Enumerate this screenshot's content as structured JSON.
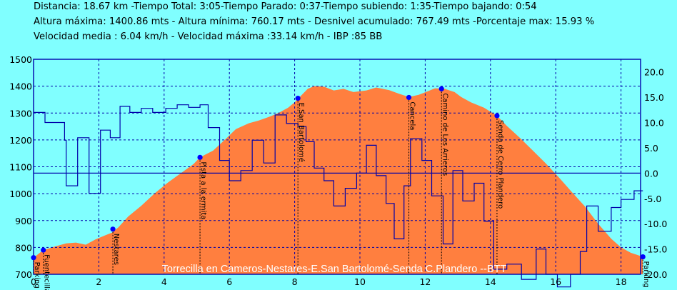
{
  "header": {
    "line1": "Distancia: 18.67 km -Tiempo Total: 3:05-Tiempo Parado: 0:37-Tiempo subiendo: 1:35-Tiempo bajando: 0:54",
    "line2": "Altura máxima: 1400.86 mts - Altura mínima: 760.17 mts - Desnivel acumulado: 767.49 mts -Porcentaje max: 15.93 %",
    "line3": "Velocidad media : 6.04 km/h - Velocidad máxima :33.14 km/h - IBP :85 BB"
  },
  "chart_data": {
    "type": "area",
    "title": "Torrecilla en Cameros-Nestares-E.San Bartolomé-Senda C.Plandero --BTT",
    "xlim": [
      0,
      18.67
    ],
    "ylim": [
      700,
      1500
    ],
    "y2lim": [
      -20,
      22.5
    ],
    "x_ticks": [
      "0",
      "2",
      "4",
      "6",
      "8",
      "10",
      "12",
      "14",
      "16",
      "18"
    ],
    "y_ticks": [
      "700",
      "800",
      "900",
      "1000",
      "1100",
      "1200",
      "1300",
      "1400",
      "1500"
    ],
    "y2_ticks": [
      "20.0",
      "15.0",
      "10.0",
      "5.0",
      "0.0",
      "-5.0",
      "-10.0",
      "-15.0",
      "-20.0"
    ],
    "colors": {
      "fill": "#ff7f3f",
      "slope_line": "#0000aa",
      "waypoint": "#0000ff",
      "grid": "#0000aa",
      "background": "#80ffff"
    },
    "altitude": [
      [
        0,
        762
      ],
      [
        0.3,
        790
      ],
      [
        0.7,
        805
      ],
      [
        1.0,
        815
      ],
      [
        1.3,
        818
      ],
      [
        1.6,
        810
      ],
      [
        1.9,
        830
      ],
      [
        2.2,
        845
      ],
      [
        2.4,
        855
      ],
      [
        2.6,
        875
      ],
      [
        2.9,
        915
      ],
      [
        3.3,
        955
      ],
      [
        3.7,
        1000
      ],
      [
        4.1,
        1040
      ],
      [
        4.5,
        1075
      ],
      [
        4.9,
        1110
      ],
      [
        5.1,
        1135
      ],
      [
        5.5,
        1160
      ],
      [
        5.9,
        1205
      ],
      [
        6.2,
        1240
      ],
      [
        6.6,
        1262
      ],
      [
        6.9,
        1272
      ],
      [
        7.2,
        1285
      ],
      [
        7.5,
        1300
      ],
      [
        7.8,
        1320
      ],
      [
        8.0,
        1340
      ],
      [
        8.2,
        1365
      ],
      [
        8.4,
        1390
      ],
      [
        8.6,
        1400
      ],
      [
        8.9,
        1398
      ],
      [
        9.2,
        1384
      ],
      [
        9.5,
        1390
      ],
      [
        9.8,
        1378
      ],
      [
        10.2,
        1384
      ],
      [
        10.5,
        1395
      ],
      [
        10.9,
        1385
      ],
      [
        11.2,
        1372
      ],
      [
        11.5,
        1360
      ],
      [
        11.8,
        1368
      ],
      [
        12.1,
        1382
      ],
      [
        12.3,
        1392
      ],
      [
        12.6,
        1390
      ],
      [
        12.9,
        1378
      ],
      [
        13.1,
        1360
      ],
      [
        13.4,
        1340
      ],
      [
        13.8,
        1320
      ],
      [
        14.2,
        1290
      ],
      [
        14.5,
        1252
      ],
      [
        14.9,
        1208
      ],
      [
        15.3,
        1160
      ],
      [
        15.7,
        1112
      ],
      [
        16.1,
        1060
      ],
      [
        16.5,
        1005
      ],
      [
        16.9,
        952
      ],
      [
        17.3,
        888
      ],
      [
        17.7,
        832
      ],
      [
        18.0,
        800
      ],
      [
        18.3,
        780
      ],
      [
        18.67,
        765
      ]
    ],
    "slope_pct": [
      [
        0,
        12
      ],
      [
        0.35,
        10
      ],
      [
        0.95,
        6.5
      ],
      [
        1.0,
        -2.5
      ],
      [
        1.35,
        7
      ],
      [
        1.7,
        -4
      ],
      [
        2.05,
        8.5
      ],
      [
        2.35,
        7
      ],
      [
        2.65,
        13.2
      ],
      [
        2.95,
        12
      ],
      [
        3.3,
        12.8
      ],
      [
        3.65,
        12
      ],
      [
        4.05,
        12.8
      ],
      [
        4.4,
        13.5
      ],
      [
        4.75,
        13
      ],
      [
        5.1,
        13.5
      ],
      [
        5.35,
        9
      ],
      [
        5.7,
        2.5
      ],
      [
        6.0,
        -1.5
      ],
      [
        6.35,
        0.5
      ],
      [
        6.7,
        6.5
      ],
      [
        7.05,
        2
      ],
      [
        7.4,
        11.5
      ],
      [
        7.75,
        9.8
      ],
      [
        8.1,
        9.2
      ],
      [
        8.35,
        6.2
      ],
      [
        8.6,
        1.0
      ],
      [
        8.9,
        -1.5
      ],
      [
        9.2,
        -6.5
      ],
      [
        9.55,
        -3
      ],
      [
        9.9,
        0
      ],
      [
        10.2,
        5.5
      ],
      [
        10.5,
        -0.5
      ],
      [
        10.8,
        -6
      ],
      [
        11.05,
        -13
      ],
      [
        11.35,
        -2.5
      ],
      [
        11.55,
        6.8
      ],
      [
        11.9,
        2.5
      ],
      [
        12.2,
        -4.5
      ],
      [
        12.55,
        -14
      ],
      [
        12.85,
        0.5
      ],
      [
        13.15,
        -5.5
      ],
      [
        13.5,
        -2
      ],
      [
        13.8,
        -9.5
      ],
      [
        14.1,
        -19
      ],
      [
        14.5,
        -18
      ],
      [
        14.95,
        -21
      ],
      [
        15.4,
        -15
      ],
      [
        15.7,
        -20
      ],
      [
        16.05,
        -22.5
      ],
      [
        16.45,
        -20
      ],
      [
        16.75,
        -15.5
      ],
      [
        16.95,
        -6.5
      ],
      [
        17.3,
        -11.5
      ],
      [
        17.7,
        -6.8
      ],
      [
        18.0,
        -5.2
      ],
      [
        18.4,
        -3.5
      ],
      [
        18.67,
        -3.5
      ]
    ],
    "waypoints": [
      {
        "label": "Parking",
        "x": 0.0,
        "alt": 762
      },
      {
        "label": "Fuentecillas",
        "x": 0.3,
        "alt": 790
      },
      {
        "label": "Nestares",
        "x": 2.43,
        "alt": 868
      },
      {
        "label": "Pista a la ermita",
        "x": 5.1,
        "alt": 1135
      },
      {
        "label": "E.San Bartolomé",
        "x": 8.1,
        "alt": 1355
      },
      {
        "label": "Cancela",
        "x": 11.5,
        "alt": 1358
      },
      {
        "label": "Camino de Los Arrieros",
        "x": 12.5,
        "alt": 1390
      },
      {
        "label": "Senda de Cerro Plandero",
        "x": 14.2,
        "alt": 1290
      },
      {
        "label": "Parking",
        "x": 18.67,
        "alt": 765
      }
    ]
  }
}
